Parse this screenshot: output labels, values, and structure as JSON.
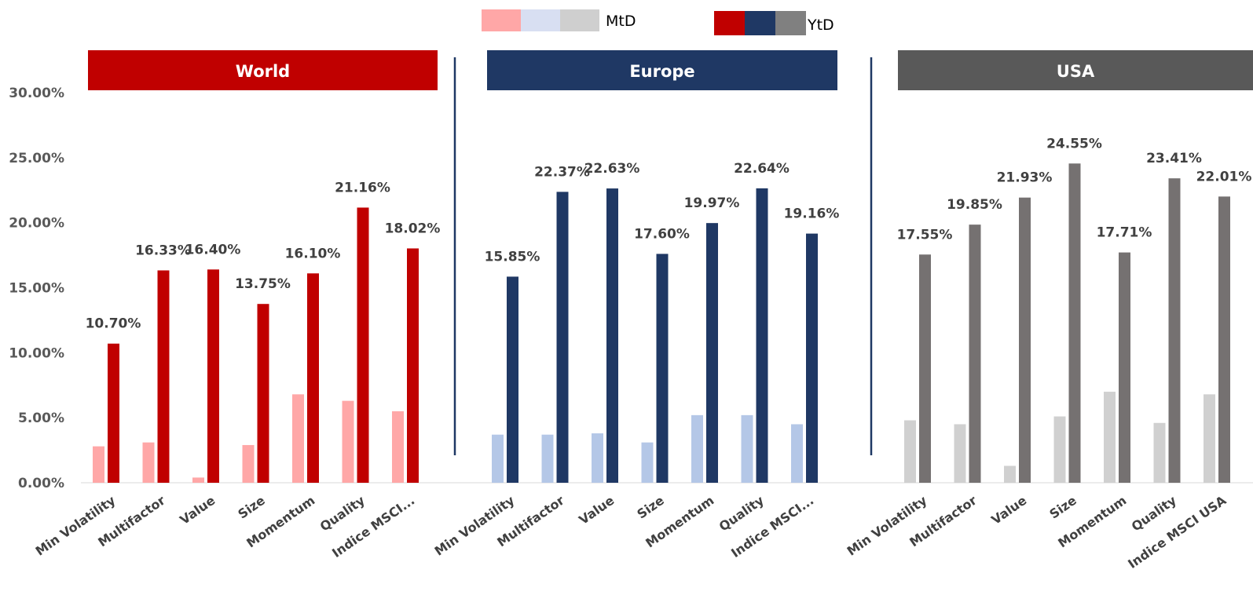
{
  "chart_data": {
    "type": "bar",
    "ylim": [
      0,
      0.3
    ],
    "yticks": [
      "0.00%",
      "5.00%",
      "10.00%",
      "15.00%",
      "20.00%",
      "25.00%",
      "30.00%"
    ],
    "ytick_values": [
      0,
      0.05,
      0.1,
      0.15,
      0.2,
      0.25,
      0.3
    ],
    "legend": {
      "mtd_label": "MtD",
      "ytd_label": "YtD",
      "mtd_colors": [
        "#ffa7a7",
        "#d8dff2",
        "#cfcfcf"
      ],
      "ytd_colors": [
        "#c00000",
        "#1f3864",
        "#808080"
      ]
    },
    "panels": [
      {
        "name": "World",
        "header_color": "#c00000",
        "mtd_color": "#ffa7a7",
        "ytd_color": "#c00000",
        "categories": [
          "Min Volatility",
          "Multifactor",
          "Value",
          "Size",
          "Momentum",
          "Quality",
          "Indice MSCI..."
        ],
        "mtd": [
          0.028,
          0.031,
          0.004,
          0.029,
          0.068,
          0.063,
          0.055
        ],
        "ytd": [
          0.107,
          0.1633,
          0.164,
          0.1375,
          0.161,
          0.2116,
          0.1802
        ],
        "ytd_labels": [
          "10.70%",
          "16.33%",
          "16.40%",
          "13.75%",
          "16.10%",
          "21.16%",
          "18.02%"
        ]
      },
      {
        "name": "Europe",
        "header_color": "#1f3864",
        "mtd_color": "#b4c7e7",
        "ytd_color": "#1f3864",
        "categories": [
          "Min Volatility",
          "Multifactor",
          "Value",
          "Size",
          "Momentum",
          "Quality",
          "Indice MSCI..."
        ],
        "mtd": [
          0.037,
          0.037,
          0.038,
          0.031,
          0.052,
          0.052,
          0.045
        ],
        "ytd": [
          0.1585,
          0.2237,
          0.2263,
          0.176,
          0.1997,
          0.2264,
          0.1916
        ],
        "ytd_labels": [
          "15.85%",
          "22.37%",
          "22.63%",
          "17.60%",
          "19.97%",
          "22.64%",
          "19.16%"
        ]
      },
      {
        "name": "USA",
        "header_color": "#595959",
        "mtd_color": "#d0d0d0",
        "ytd_color": "#757171",
        "categories": [
          "Min Volatility",
          "Multifactor",
          "Value",
          "Size",
          "Momentum",
          "Quality",
          "Indice MSCI USA"
        ],
        "mtd": [
          0.048,
          0.045,
          0.013,
          0.051,
          0.07,
          0.046,
          0.068
        ],
        "ytd": [
          0.1755,
          0.1985,
          0.2193,
          0.2455,
          0.1771,
          0.2341,
          0.2201
        ],
        "ytd_labels": [
          "17.55%",
          "19.85%",
          "21.93%",
          "24.55%",
          "17.71%",
          "23.41%",
          "22.01%"
        ]
      }
    ]
  }
}
